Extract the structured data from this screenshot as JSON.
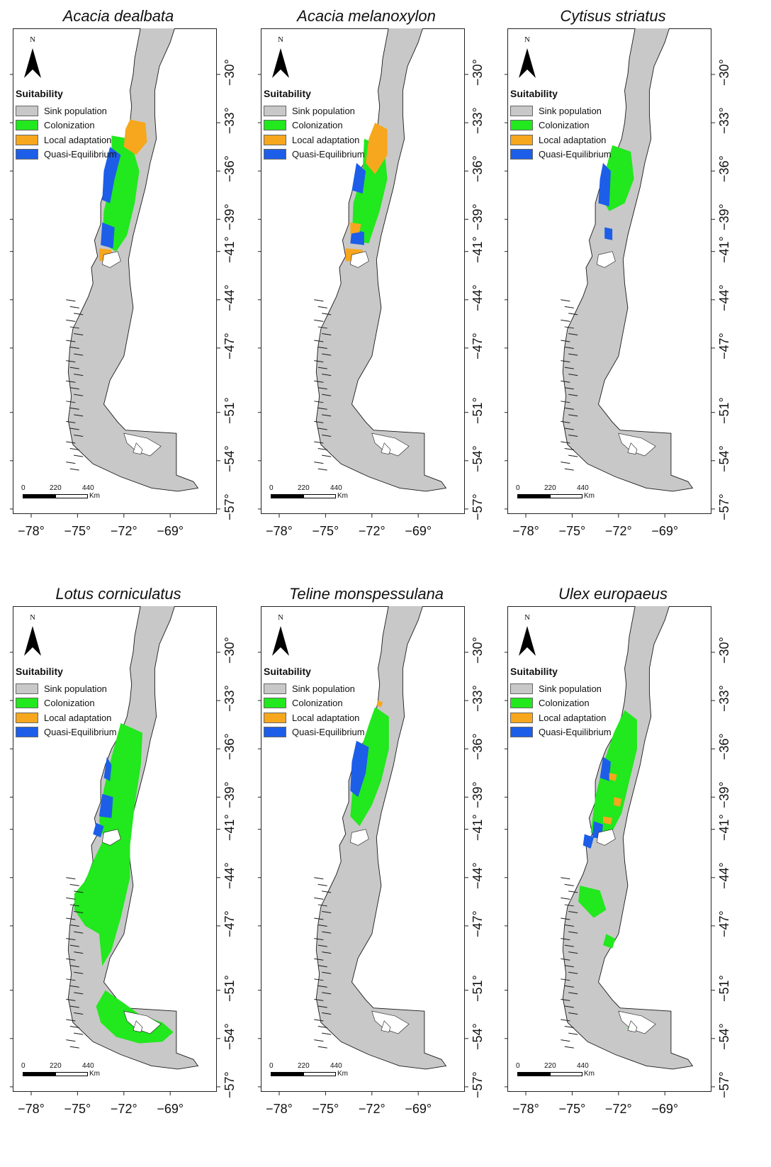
{
  "legend": {
    "title": "Suitability",
    "items": [
      {
        "label": "Sink population",
        "color": "#c8c8c8"
      },
      {
        "label": "Colonization",
        "color": "#22e81e"
      },
      {
        "label": "Local adaptation",
        "color": "#f7a71d"
      },
      {
        "label": "Quasi-Equilibrium",
        "color": "#1c5ee8"
      }
    ]
  },
  "north_label": "N",
  "scale": {
    "labels": [
      "0",
      "220",
      "440"
    ],
    "unit": "Km"
  },
  "axes": {
    "x_ticks": [
      "−78°",
      "−75°",
      "−72°",
      "−69°"
    ],
    "y_ticks": [
      "−30°",
      "−33°",
      "−36°",
      "−39°",
      "−41°",
      "−44°",
      "−47°",
      "−51°",
      "−54°",
      "−57°"
    ]
  },
  "chart_data": [
    {
      "type": "map",
      "title": "Acacia dealbata",
      "series": [
        {
          "name": "Colonization",
          "lat_range": [
            -41.5,
            -33.5
          ]
        },
        {
          "name": "Local adaptation",
          "lat_range": [
            -41.5,
            -32.8
          ]
        },
        {
          "name": "Quasi-Equilibrium",
          "lat_range": [
            -41.0,
            -34.5
          ]
        }
      ]
    },
    {
      "type": "map",
      "title": "Acacia melanoxylon",
      "series": [
        {
          "name": "Colonization",
          "lat_range": [
            -41.0,
            -34.0
          ]
        },
        {
          "name": "Local adaptation",
          "lat_range": [
            -41.5,
            -33.0
          ]
        },
        {
          "name": "Quasi-Equilibrium",
          "lat_range": [
            -40.5,
            -35.5
          ]
        }
      ]
    },
    {
      "type": "map",
      "title": "Cytisus striatus",
      "series": [
        {
          "name": "Colonization",
          "lat_range": [
            -40.0,
            -34.5
          ]
        },
        {
          "name": "Quasi-Equilibrium",
          "lat_range": [
            -40.0,
            -35.5
          ]
        }
      ]
    },
    {
      "type": "map",
      "title": "Lotus corniculatus",
      "series": [
        {
          "name": "Colonization",
          "lat_range": [
            -54.5,
            -34.5
          ]
        },
        {
          "name": "Quasi-Equilibrium",
          "lat_range": [
            -41.5,
            -36.5
          ]
        }
      ]
    },
    {
      "type": "map",
      "title": "Teline monspessulana",
      "series": [
        {
          "name": "Colonization",
          "lat_range": [
            -41.0,
            -33.5
          ]
        },
        {
          "name": "Local adaptation",
          "lat_range": [
            -33.3,
            -33.0
          ]
        },
        {
          "name": "Quasi-Equilibrium",
          "lat_range": [
            -39.5,
            -35.5
          ]
        }
      ]
    },
    {
      "type": "map",
      "title": "Ulex europaeus",
      "series": [
        {
          "name": "Colonization",
          "lat_range": [
            -54.0,
            -33.5
          ]
        },
        {
          "name": "Local adaptation",
          "lat_range": [
            -40.5,
            -37.5
          ]
        },
        {
          "name": "Quasi-Equilibrium",
          "lat_range": [
            -42.0,
            -36.5
          ]
        }
      ]
    }
  ]
}
